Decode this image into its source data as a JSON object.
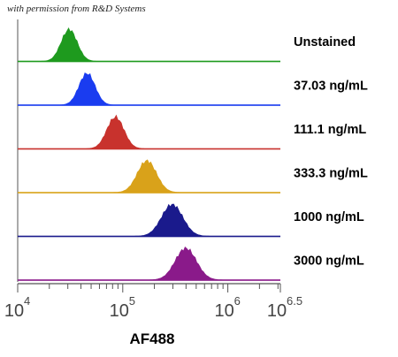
{
  "watermark": "with permission from R&D Systems",
  "chart_data": {
    "type": "histogram",
    "xlabel": "AF488",
    "x_scale": "log",
    "xlim": [
      4,
      6.5
    ],
    "x_ticks": [
      {
        "base": "10",
        "exp": "4",
        "value": 4
      },
      {
        "base": "10",
        "exp": "5",
        "value": 5
      },
      {
        "base": "10",
        "exp": "6",
        "value": 6
      },
      {
        "base": "10",
        "exp": "6.5",
        "value": 6.5
      }
    ],
    "series": [
      {
        "name": "Unstained",
        "color": "#1e9a1e",
        "peak_log10": 4.49,
        "width": 0.075
      },
      {
        "name": "37.03 ng/mL",
        "color": "#1a3cf0",
        "peak_log10": 4.66,
        "width": 0.075
      },
      {
        "name": "111.1 ng/mL",
        "color": "#c8322d",
        "peak_log10": 4.93,
        "width": 0.08
      },
      {
        "name": "333.3 ng/mL",
        "color": "#d9a21a",
        "peak_log10": 5.23,
        "width": 0.09
      },
      {
        "name": "1000 ng/mL",
        "color": "#1a1a8c",
        "peak_log10": 5.47,
        "width": 0.1
      },
      {
        "name": "3000 ng/mL",
        "color": "#8a1a8a",
        "peak_log10": 5.6,
        "width": 0.1
      }
    ]
  }
}
